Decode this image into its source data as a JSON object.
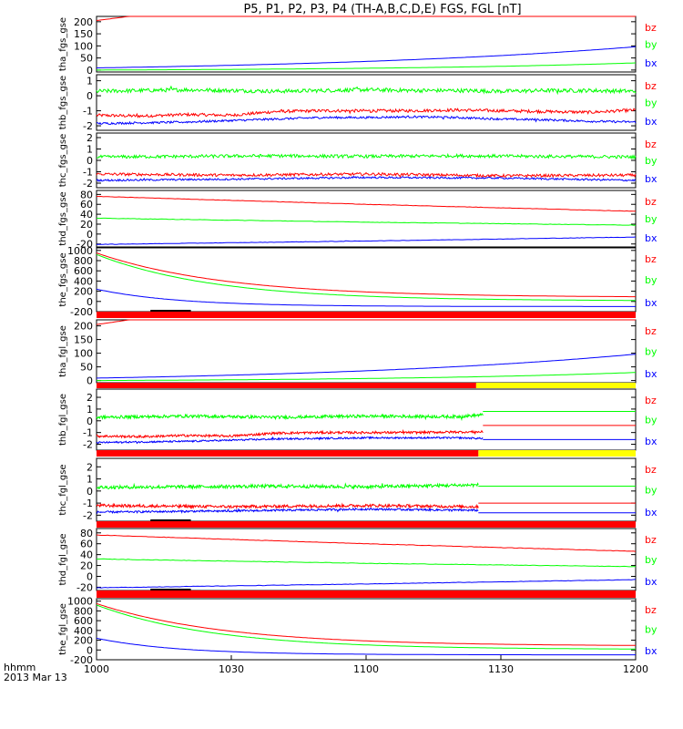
{
  "title": "P5, P1, P2, P3, P4 (TH-A,B,C,D,E) FGS, FGL [nT]",
  "colors": {
    "bx": "#0000ff",
    "by": "#00ff00",
    "bz": "#ff0000",
    "bar_red": "#ff0000",
    "bar_yellow": "#ffff00"
  },
  "chart_data": {
    "type": "line",
    "x_axis": {
      "range": [
        0,
        120
      ],
      "unit": "minutes after 1000",
      "ticks": [
        {
          "v": 0,
          "label": "1000"
        },
        {
          "v": 30,
          "label": "1030"
        },
        {
          "v": 60,
          "label": "1100"
        },
        {
          "v": 90,
          "label": "1130"
        },
        {
          "v": 120,
          "label": "1200"
        }
      ],
      "label_line1": "hhmm",
      "label_line2": "2013 Mar 13"
    },
    "panels": [
      {
        "ylabel": "tha_fgs_gse",
        "ylim": [
          -8,
          222
        ],
        "yticks": [
          0,
          50,
          100,
          150,
          200
        ],
        "series": [
          {
            "name": "bz",
            "color": "bz",
            "kind": "smooth",
            "model": "exp",
            "a": -53,
            "b": 258,
            "k": 0.0089,
            "noise": 0
          },
          {
            "name": "by",
            "color": "bx_dummy",
            "skip": true
          },
          {
            "name": "by",
            "color": "by",
            "kind": "smooth",
            "model": "exp",
            "a": -3.76,
            "b": 3.76,
            "k": 0.0182,
            "noise": 0
          },
          {
            "name": "bx",
            "color": "bx",
            "kind": "smooth",
            "model": "exp",
            "a": -11.95,
            "b": 20.95,
            "k": 0.0137,
            "noise": 0
          }
        ],
        "bar": null
      },
      {
        "ylabel": "thb_fgs_gse",
        "ylim": [
          -2.3,
          1.4
        ],
        "yticks": [
          -2,
          -1,
          0,
          1
        ],
        "series": [
          {
            "name": "bz",
            "color": "bz",
            "kind": "noisy",
            "pts": [
              [
                0,
                -1.3
              ],
              [
                10,
                -1.35
              ],
              [
                20,
                -1.25
              ],
              [
                30,
                -1.3
              ],
              [
                40,
                -1.05
              ],
              [
                50,
                -1.0
              ],
              [
                60,
                -1.0
              ],
              [
                70,
                -1.0
              ],
              [
                80,
                -0.95
              ],
              [
                90,
                -1.0
              ],
              [
                100,
                -1.05
              ],
              [
                110,
                -1.1
              ],
              [
                120,
                -0.95
              ]
            ],
            "noise": 0.1,
            "end": 120
          },
          {
            "name": "by",
            "color": "by",
            "kind": "noisy",
            "pts": [
              [
                0,
                0.3
              ],
              [
                10,
                0.35
              ],
              [
                20,
                0.4
              ],
              [
                30,
                0.35
              ],
              [
                40,
                0.3
              ],
              [
                50,
                0.35
              ],
              [
                60,
                0.4
              ],
              [
                70,
                0.35
              ],
              [
                80,
                0.35
              ],
              [
                90,
                0.3
              ],
              [
                100,
                0.35
              ],
              [
                110,
                0.35
              ],
              [
                120,
                0.3
              ]
            ],
            "noise": 0.13,
            "end": 120
          },
          {
            "name": "bx",
            "color": "bx",
            "kind": "noisy",
            "pts": [
              [
                0,
                -1.85
              ],
              [
                20,
                -1.75
              ],
              [
                40,
                -1.55
              ],
              [
                50,
                -1.45
              ],
              [
                60,
                -1.45
              ],
              [
                70,
                -1.4
              ],
              [
                80,
                -1.45
              ],
              [
                90,
                -1.55
              ],
              [
                100,
                -1.6
              ],
              [
                110,
                -1.7
              ],
              [
                120,
                -1.75
              ]
            ],
            "noise": 0.07,
            "end": 120
          }
        ],
        "bar": null
      },
      {
        "ylabel": "thc_fgs_gse",
        "ylim": [
          -2.4,
          2.4
        ],
        "yticks": [
          -2,
          -1,
          0,
          1,
          2
        ],
        "series": [
          {
            "name": "bz",
            "color": "bz",
            "kind": "noisy",
            "pts": [
              [
                0,
                -1.2
              ],
              [
                30,
                -1.3
              ],
              [
                60,
                -1.2
              ],
              [
                90,
                -1.35
              ],
              [
                120,
                -1.3
              ]
            ],
            "noise": 0.12,
            "end": 120
          },
          {
            "name": "by",
            "color": "by",
            "kind": "noisy",
            "pts": [
              [
                0,
                0.3
              ],
              [
                20,
                0.35
              ],
              [
                40,
                0.4
              ],
              [
                60,
                0.35
              ],
              [
                80,
                0.4
              ],
              [
                100,
                0.35
              ],
              [
                120,
                0.3
              ]
            ],
            "noise": 0.14,
            "end": 120
          },
          {
            "name": "bx",
            "color": "bx",
            "kind": "noisy",
            "pts": [
              [
                0,
                -1.75
              ],
              [
                30,
                -1.65
              ],
              [
                60,
                -1.5
              ],
              [
                90,
                -1.55
              ],
              [
                120,
                -1.75
              ]
            ],
            "noise": 0.08,
            "end": 120
          }
        ],
        "bar": null
      },
      {
        "ylabel": "thd_fgs_gse",
        "ylim": [
          -26,
          88
        ],
        "yticks": [
          -20,
          0,
          20,
          40,
          60,
          80
        ],
        "series": [
          {
            "name": "bz",
            "color": "bz",
            "kind": "line",
            "pts": [
              [
                0,
                76
              ],
              [
                60,
                60
              ],
              [
                120,
                46
              ]
            ],
            "noise": 0.4
          },
          {
            "name": "by",
            "color": "by",
            "kind": "line",
            "pts": [
              [
                0,
                32
              ],
              [
                60,
                24
              ],
              [
                120,
                18
              ]
            ],
            "noise": 0.4
          },
          {
            "name": "bx",
            "color": "bx",
            "kind": "line",
            "pts": [
              [
                0,
                -21
              ],
              [
                60,
                -14
              ],
              [
                120,
                -6
              ]
            ],
            "noise": 0.4
          }
        ],
        "bar": null
      },
      {
        "ylabel": "the_fgs_gse",
        "ylim": [
          -200,
          1050
        ],
        "yticks": [
          -200,
          0,
          200,
          400,
          600,
          800,
          1000
        ],
        "series": [
          {
            "name": "bz",
            "color": "bz",
            "kind": "smooth",
            "model": "exp",
            "a": 80,
            "b": 870,
            "k": 0.035,
            "noise": 0
          },
          {
            "name": "by",
            "color": "by",
            "kind": "smooth",
            "model": "exp",
            "a": 10,
            "b": 910,
            "k": 0.038,
            "noise": 0
          },
          {
            "name": "bx",
            "color": "bx",
            "kind": "smooth",
            "model": "exp",
            "a": -100,
            "b": 340,
            "k": 0.055,
            "noise": 0
          }
        ],
        "bar": {
          "segments": [
            {
              "from": 0,
              "to": 120,
              "color": "bar_red"
            }
          ],
          "mark": {
            "from": 12,
            "to": 21
          }
        }
      },
      {
        "ylabel": "tha_fgl_gse",
        "ylim": [
          -8,
          222
        ],
        "yticks": [
          0,
          50,
          100,
          150,
          200
        ],
        "series": [
          {
            "name": "bz",
            "color": "bz",
            "kind": "smooth",
            "model": "exp",
            "a": -53,
            "b": 258,
            "k": 0.0089,
            "noise": 0
          },
          {
            "name": "by",
            "color": "by",
            "kind": "smooth",
            "model": "exp",
            "a": -3.76,
            "b": 3.76,
            "k": 0.0182,
            "noise": 0
          },
          {
            "name": "bx",
            "color": "bx",
            "kind": "smooth",
            "model": "exp",
            "a": -11.95,
            "b": 20.95,
            "k": 0.0137,
            "noise": 0
          }
        ],
        "bar": {
          "segments": [
            {
              "from": 0,
              "to": 84.5,
              "color": "bar_red"
            },
            {
              "from": 84.5,
              "to": 120,
              "color": "bar_yellow"
            }
          ],
          "mark": null
        }
      },
      {
        "ylabel": "thb_fgl_gse",
        "ylim": [
          -2.5,
          2.7
        ],
        "yticks": [
          -2,
          -1,
          0,
          1,
          2
        ],
        "series": [
          {
            "name": "bz",
            "color": "bz",
            "kind": "noisy",
            "pts": [
              [
                0,
                -1.3
              ],
              [
                10,
                -1.35
              ],
              [
                20,
                -1.25
              ],
              [
                30,
                -1.3
              ],
              [
                40,
                -1.05
              ],
              [
                50,
                -1.0
              ],
              [
                60,
                -1.0
              ],
              [
                70,
                -1.0
              ],
              [
                80,
                -0.95
              ],
              [
                86,
                -0.95
              ]
            ],
            "noise": 0.1,
            "end": 86,
            "tail": [
              [
                86,
                -0.4
              ],
              [
                120,
                -0.4
              ]
            ]
          },
          {
            "name": "by",
            "color": "by",
            "kind": "noisy",
            "pts": [
              [
                0,
                0.3
              ],
              [
                20,
                0.4
              ],
              [
                40,
                0.3
              ],
              [
                60,
                0.4
              ],
              [
                80,
                0.35
              ],
              [
                86,
                0.5
              ]
            ],
            "noise": 0.13,
            "end": 86,
            "tail": [
              [
                86,
                0.8
              ],
              [
                120,
                0.8
              ]
            ]
          },
          {
            "name": "bx",
            "color": "bx",
            "kind": "noisy",
            "pts": [
              [
                0,
                -1.85
              ],
              [
                20,
                -1.75
              ],
              [
                40,
                -1.55
              ],
              [
                60,
                -1.45
              ],
              [
                80,
                -1.45
              ],
              [
                86,
                -1.5
              ]
            ],
            "noise": 0.07,
            "end": 86,
            "tail": [
              [
                86,
                -1.6
              ],
              [
                120,
                -1.6
              ]
            ]
          }
        ],
        "bar": {
          "segments": [
            {
              "from": 0,
              "to": 85,
              "color": "bar_red"
            },
            {
              "from": 85,
              "to": 120,
              "color": "bar_yellow"
            }
          ],
          "mark": null
        }
      },
      {
        "ylabel": "thc_fgl_gse",
        "ylim": [
          -2.5,
          2.7
        ],
        "yticks": [
          -2,
          -1,
          0,
          1,
          2
        ],
        "series": [
          {
            "name": "bz",
            "color": "bz",
            "kind": "noisy",
            "pts": [
              [
                0,
                -1.2
              ],
              [
                30,
                -1.3
              ],
              [
                60,
                -1.2
              ],
              [
                85,
                -1.3
              ]
            ],
            "noise": 0.12,
            "end": 85,
            "tail": [
              [
                85,
                -1.0
              ],
              [
                120,
                -1.0
              ]
            ]
          },
          {
            "name": "by",
            "color": "by",
            "kind": "noisy",
            "pts": [
              [
                0,
                0.3
              ],
              [
                20,
                0.35
              ],
              [
                40,
                0.4
              ],
              [
                60,
                0.35
              ],
              [
                85,
                0.5
              ]
            ],
            "noise": 0.14,
            "end": 85,
            "tail": [
              [
                85,
                0.4
              ],
              [
                120,
                0.4
              ]
            ]
          },
          {
            "name": "bx",
            "color": "bx",
            "kind": "noisy",
            "pts": [
              [
                0,
                -1.75
              ],
              [
                30,
                -1.65
              ],
              [
                60,
                -1.5
              ],
              [
                85,
                -1.6
              ]
            ],
            "noise": 0.08,
            "end": 85,
            "tail": [
              [
                85,
                -1.8
              ],
              [
                120,
                -1.8
              ]
            ]
          }
        ],
        "bar": {
          "segments": [
            {
              "from": 0,
              "to": 120,
              "color": "bar_red"
            }
          ],
          "mark": {
            "from": 12,
            "to": 21
          }
        }
      },
      {
        "ylabel": "thd_fgl_gse",
        "ylim": [
          -26,
          88
        ],
        "yticks": [
          -20,
          0,
          20,
          40,
          60,
          80
        ],
        "series": [
          {
            "name": "bz",
            "color": "bz",
            "kind": "line",
            "pts": [
              [
                0,
                76
              ],
              [
                60,
                60
              ],
              [
                120,
                46
              ]
            ],
            "noise": 0.4
          },
          {
            "name": "by",
            "color": "by",
            "kind": "line",
            "pts": [
              [
                0,
                32
              ],
              [
                60,
                24
              ],
              [
                120,
                18
              ]
            ],
            "noise": 0.4
          },
          {
            "name": "bx",
            "color": "bx",
            "kind": "line",
            "pts": [
              [
                0,
                -21
              ],
              [
                60,
                -14
              ],
              [
                120,
                -6
              ]
            ],
            "noise": 0.4
          }
        ],
        "bar": {
          "segments": [
            {
              "from": 0,
              "to": 120,
              "color": "bar_red"
            }
          ],
          "mark": {
            "from": 12,
            "to": 21
          }
        }
      },
      {
        "ylabel": "the_fgl_gse",
        "ylim": [
          -200,
          1050
        ],
        "yticks": [
          -200,
          0,
          200,
          400,
          600,
          800,
          1000
        ],
        "series": [
          {
            "name": "bz",
            "color": "bz",
            "kind": "smooth",
            "model": "exp",
            "a": 80,
            "b": 870,
            "k": 0.035,
            "noise": 0
          },
          {
            "name": "by",
            "color": "by",
            "kind": "smooth",
            "model": "exp",
            "a": 10,
            "b": 910,
            "k": 0.038,
            "noise": 0
          },
          {
            "name": "bx",
            "color": "bx",
            "kind": "smooth",
            "model": "exp",
            "a": -100,
            "b": 340,
            "k": 0.055,
            "noise": 0
          }
        ],
        "bar": null
      }
    ]
  }
}
